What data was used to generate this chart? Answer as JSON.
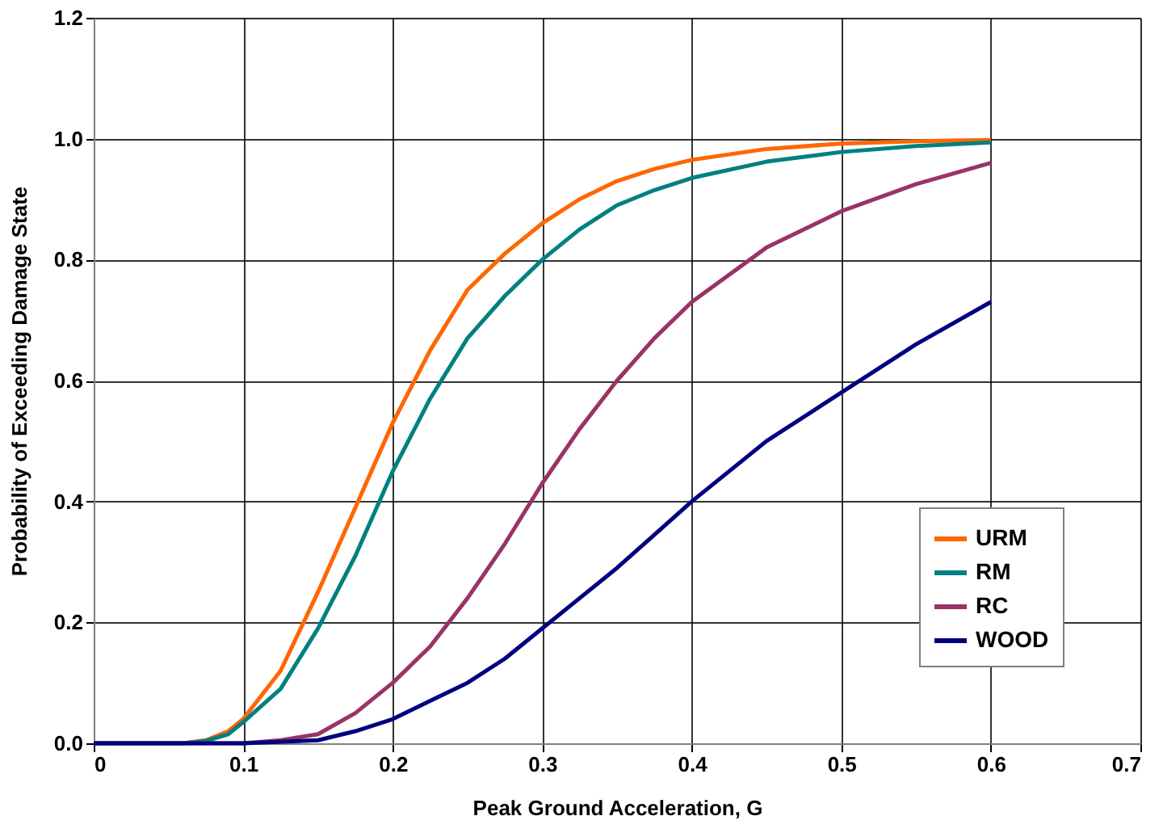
{
  "chart_data": {
    "type": "line",
    "xlabel": "Peak Ground Acceleration, G",
    "ylabel": "Probability of Exceeding Damage State",
    "xlim": [
      0,
      0.7
    ],
    "xticks": [
      {
        "value": 0,
        "label": "0"
      },
      0.1,
      0.2,
      0.3,
      0.4,
      0.5,
      0.6,
      0.7
    ],
    "ylim": [
      0,
      1.2
    ],
    "yticks": [
      {
        "value": 0,
        "label": "0.0"
      },
      0.2,
      0.4,
      0.6,
      0.8,
      {
        "value": 1,
        "label": "1.0"
      },
      1.2
    ],
    "grid": true,
    "legend": "bottom right",
    "marker": "none",
    "line_style": "solid",
    "series": [
      {
        "name": "URM",
        "color": "#ff6600",
        "x": [
          0,
          0.06,
          0.075,
          0.09,
          0.1,
          0.125,
          0.15,
          0.175,
          0.2,
          0.225,
          0.25,
          0.275,
          0.3,
          0.325,
          0.35,
          0.375,
          0.4,
          0.45,
          0.5,
          0.55,
          0.6
        ],
        "values": [
          0,
          0,
          0.005,
          0.02,
          0.04,
          0.12,
          0.25,
          0.39,
          0.53,
          0.65,
          0.75,
          0.81,
          0.86,
          0.9,
          0.93,
          0.95,
          0.965,
          0.983,
          0.992,
          0.996,
          0.998
        ]
      },
      {
        "name": "RM",
        "color": "#008080",
        "x": [
          0,
          0.06,
          0.075,
          0.09,
          0.1,
          0.125,
          0.15,
          0.175,
          0.2,
          0.225,
          0.25,
          0.275,
          0.3,
          0.325,
          0.35,
          0.375,
          0.4,
          0.45,
          0.5,
          0.55,
          0.6
        ],
        "values": [
          0,
          0,
          0.004,
          0.015,
          0.035,
          0.09,
          0.19,
          0.31,
          0.45,
          0.57,
          0.67,
          0.74,
          0.8,
          0.85,
          0.89,
          0.915,
          0.935,
          0.962,
          0.978,
          0.988,
          0.994
        ]
      },
      {
        "name": "RC",
        "color": "#993366",
        "x": [
          0,
          0.1,
          0.125,
          0.15,
          0.175,
          0.2,
          0.225,
          0.25,
          0.275,
          0.3,
          0.325,
          0.35,
          0.375,
          0.4,
          0.45,
          0.5,
          0.55,
          0.6
        ],
        "values": [
          0,
          0,
          0.005,
          0.015,
          0.05,
          0.1,
          0.16,
          0.24,
          0.33,
          0.43,
          0.52,
          0.6,
          0.67,
          0.73,
          0.82,
          0.88,
          0.925,
          0.96
        ]
      },
      {
        "name": "WOOD",
        "color": "#000080",
        "x": [
          0,
          0.1,
          0.15,
          0.175,
          0.2,
          0.225,
          0.25,
          0.275,
          0.3,
          0.325,
          0.35,
          0.375,
          0.4,
          0.45,
          0.5,
          0.55,
          0.6
        ],
        "values": [
          0,
          0,
          0.005,
          0.02,
          0.04,
          0.07,
          0.1,
          0.14,
          0.19,
          0.24,
          0.29,
          0.345,
          0.4,
          0.5,
          0.58,
          0.66,
          0.73
        ]
      }
    ]
  }
}
